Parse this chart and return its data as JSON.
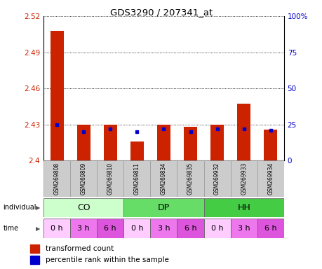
{
  "title": "GDS3290 / 207341_at",
  "samples": [
    "GSM269808",
    "GSM269809",
    "GSM269810",
    "GSM269811",
    "GSM269834",
    "GSM269835",
    "GSM269932",
    "GSM269933",
    "GSM269934"
  ],
  "red_values": [
    2.508,
    2.43,
    2.43,
    2.416,
    2.43,
    2.428,
    2.43,
    2.447,
    2.426
  ],
  "blue_values_pct": [
    25,
    20,
    22,
    20,
    22,
    20,
    22,
    22,
    21
  ],
  "ymin": 2.4,
  "ymax": 2.52,
  "yticks": [
    2.4,
    2.43,
    2.46,
    2.49,
    2.52
  ],
  "ytick_labels": [
    "2.4",
    "2.43",
    "2.46",
    "2.49",
    "2.52"
  ],
  "right_yticks": [
    0,
    25,
    50,
    75,
    100
  ],
  "right_ytick_labels": [
    "0",
    "25",
    "50",
    "75",
    "100%"
  ],
  "individual_groups": [
    {
      "label": "CO",
      "start": 0,
      "end": 3,
      "color": "#ccffcc"
    },
    {
      "label": "DP",
      "start": 3,
      "end": 6,
      "color": "#66dd66"
    },
    {
      "label": "HH",
      "start": 6,
      "end": 9,
      "color": "#44cc44"
    }
  ],
  "time_labels": [
    "0 h",
    "3 h",
    "6 h",
    "0 h",
    "3 h",
    "6 h",
    "0 h",
    "3 h",
    "6 h"
  ],
  "time_colors": [
    "#ffccff",
    "#ee77ee",
    "#dd55dd",
    "#ffccff",
    "#ee77ee",
    "#dd55dd",
    "#ffccff",
    "#ee77ee",
    "#dd55dd"
  ],
  "bar_color": "#cc2200",
  "dot_color": "#0000cc",
  "baseline": 2.4,
  "bar_width": 0.5
}
